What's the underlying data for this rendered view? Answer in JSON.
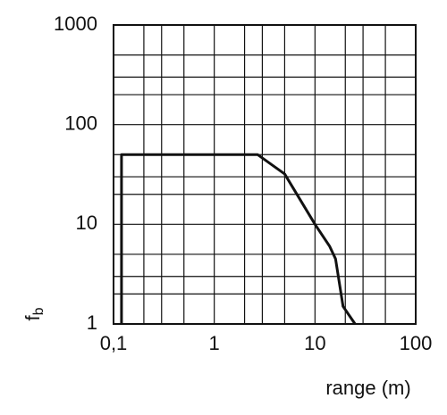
{
  "chart_data": {
    "type": "line",
    "log_x": true,
    "log_y": true,
    "grid": true,
    "xlabel": "range (m)",
    "ylabel": "f",
    "ylabel_sub": "b",
    "xlim": [
      0.1,
      100
    ],
    "ylim": [
      1,
      1000
    ],
    "xticks": [
      {
        "value": 0.1,
        "label": "0,1"
      },
      1,
      10,
      100
    ],
    "yticks": [
      1,
      10,
      100,
      1000
    ],
    "series": [
      {
        "color": "#111111",
        "x": [
          0.12,
          0.12,
          2.7,
          5,
          10,
          14,
          16,
          19,
          25
        ],
        "values": [
          1,
          50,
          50,
          32,
          10,
          6,
          4.5,
          1.5,
          1
        ]
      }
    ]
  }
}
